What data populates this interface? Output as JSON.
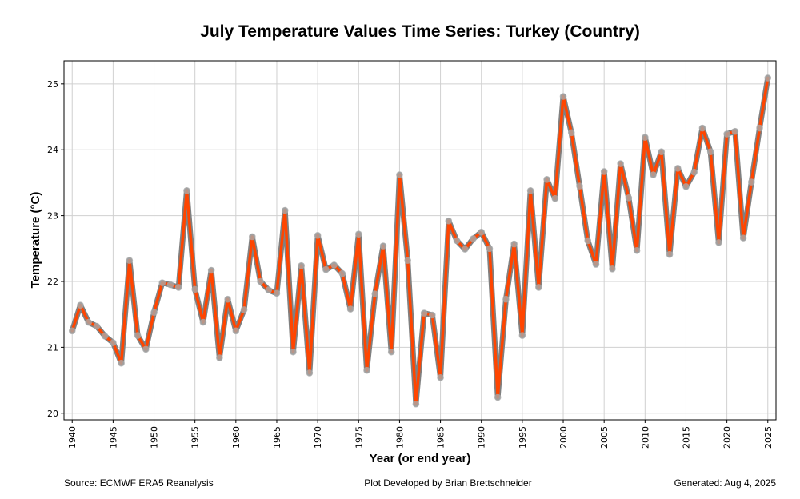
{
  "chart_data": {
    "type": "line",
    "title": "July Temperature Values Time Series: Turkey (Country)",
    "xlabel": "Year (or end year)",
    "ylabel": "Temperature (°C)",
    "xlim": [
      1939,
      2026
    ],
    "ylim": [
      19.9,
      25.35
    ],
    "grid": true,
    "x_ticks": [
      1940,
      1945,
      1950,
      1955,
      1960,
      1965,
      1970,
      1975,
      1980,
      1985,
      1990,
      1995,
      2000,
      2005,
      2010,
      2015,
      2020,
      2025
    ],
    "y_ticks": [
      20,
      21,
      22,
      23,
      24,
      25
    ],
    "series": [
      {
        "name": "July Temperature",
        "line_color": "#FF4500",
        "outline_color": "#808080",
        "marker_color": "#A9A9A9",
        "x": [
          1940,
          1941,
          1942,
          1943,
          1944,
          1945,
          1946,
          1947,
          1948,
          1949,
          1950,
          1951,
          1952,
          1953,
          1954,
          1955,
          1956,
          1957,
          1958,
          1959,
          1960,
          1961,
          1962,
          1963,
          1964,
          1965,
          1966,
          1967,
          1968,
          1969,
          1970,
          1971,
          1972,
          1973,
          1974,
          1975,
          1976,
          1977,
          1978,
          1979,
          1980,
          1981,
          1982,
          1983,
          1984,
          1985,
          1986,
          1987,
          1988,
          1989,
          1990,
          1991,
          1992,
          1993,
          1994,
          1995,
          1996,
          1997,
          1998,
          1999,
          2000,
          2001,
          2002,
          2003,
          2004,
          2005,
          2006,
          2007,
          2008,
          2009,
          2010,
          2011,
          2012,
          2013,
          2014,
          2015,
          2016,
          2017,
          2018,
          2019,
          2020,
          2021,
          2022,
          2023,
          2024,
          2025
        ],
        "values": [
          21.25,
          21.64,
          21.38,
          21.32,
          21.17,
          21.07,
          20.76,
          22.32,
          21.18,
          20.97,
          21.53,
          21.98,
          21.95,
          21.91,
          23.38,
          21.88,
          21.38,
          22.17,
          20.84,
          21.73,
          21.25,
          21.57,
          22.68,
          22.0,
          21.87,
          21.82,
          23.08,
          20.93,
          22.24,
          20.61,
          22.7,
          22.18,
          22.25,
          22.12,
          21.58,
          22.72,
          20.65,
          21.81,
          22.54,
          20.93,
          23.62,
          22.32,
          20.14,
          21.52,
          21.49,
          20.54,
          22.92,
          22.62,
          22.49,
          22.65,
          22.75,
          22.5,
          20.24,
          21.73,
          22.57,
          21.18,
          23.38,
          21.91,
          23.55,
          23.26,
          24.81,
          24.26,
          23.45,
          22.62,
          22.26,
          23.67,
          22.19,
          23.79,
          23.27,
          22.47,
          24.19,
          23.62,
          23.97,
          22.41,
          23.72,
          23.44,
          23.66,
          24.33,
          23.97,
          22.59,
          24.24,
          24.28,
          22.66,
          23.51,
          24.33,
          25.09
        ]
      }
    ]
  },
  "footer": {
    "source": "Source: ECMWF ERA5 Reanalysis",
    "credit": "Plot Developed by Brian Brettschneider",
    "generated": "Generated: Aug 4, 2025"
  }
}
